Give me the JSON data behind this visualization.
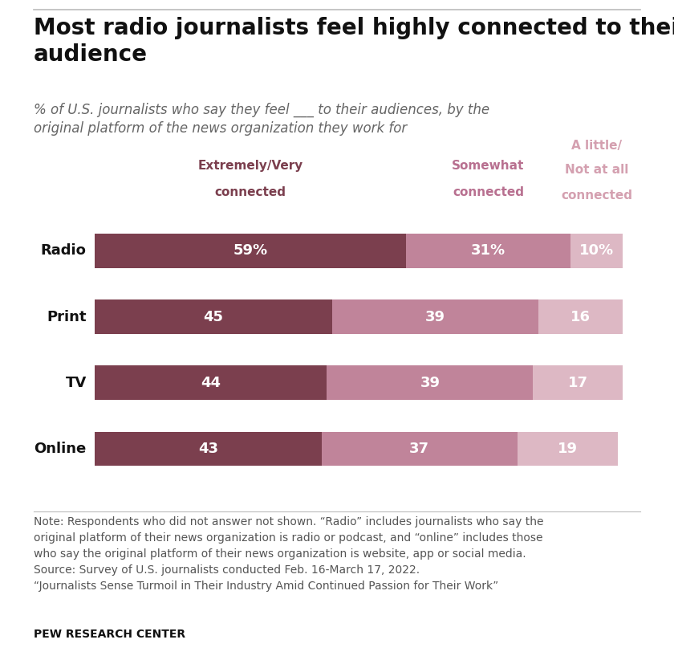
{
  "title": "Most radio journalists feel highly connected to their\naudience",
  "subtitle": "% of U.S. journalists who say they feel ___ to their audiences, by the\noriginal platform of the news organization they work for",
  "categories": [
    "Radio",
    "Print",
    "TV",
    "Online"
  ],
  "col1_label": "Extremely/Very\nconnected",
  "col2_label": "Somewhat\nconnected",
  "col3_label": "A little/\nNot at all\nconnected",
  "values": [
    [
      59,
      31,
      10
    ],
    [
      45,
      39,
      16
    ],
    [
      44,
      39,
      17
    ],
    [
      43,
      37,
      19
    ]
  ],
  "value_labels": [
    [
      "59%",
      "31%",
      "10%"
    ],
    [
      "45",
      "39",
      "16"
    ],
    [
      "44",
      "39",
      "17"
    ],
    [
      "43",
      "37",
      "19"
    ]
  ],
  "colors": [
    "#7b3f4e",
    "#c0849a",
    "#ddb8c4"
  ],
  "bar_height": 0.52,
  "note_text": "Note: Respondents who did not answer not shown. “Radio” includes journalists who say the\noriginal platform of their news organization is radio or podcast, and “online” includes those\nwho say the original platform of their news organization is website, app or social media.\nSource: Survey of U.S. journalists conducted Feb. 16-March 17, 2022.\n“Journalists Sense Turmoil in Their Industry Amid Continued Passion for Their Work”",
  "pew_label": "PEW RESEARCH CENTER",
  "title_color": "#111111",
  "subtitle_color": "#666666",
  "col1_label_color": "#7b3f4e",
  "col2_label_color": "#b87090",
  "col3_label_color": "#d4a0b0",
  "note_color": "#555555",
  "pew_color": "#111111",
  "bg_color": "#ffffff",
  "bar_text_color": "#ffffff",
  "bar_fontsize": 13,
  "cat_fontsize": 13,
  "header_fontsize": 11,
  "title_fontsize": 20,
  "subtitle_fontsize": 12,
  "note_fontsize": 10,
  "pew_fontsize": 10
}
